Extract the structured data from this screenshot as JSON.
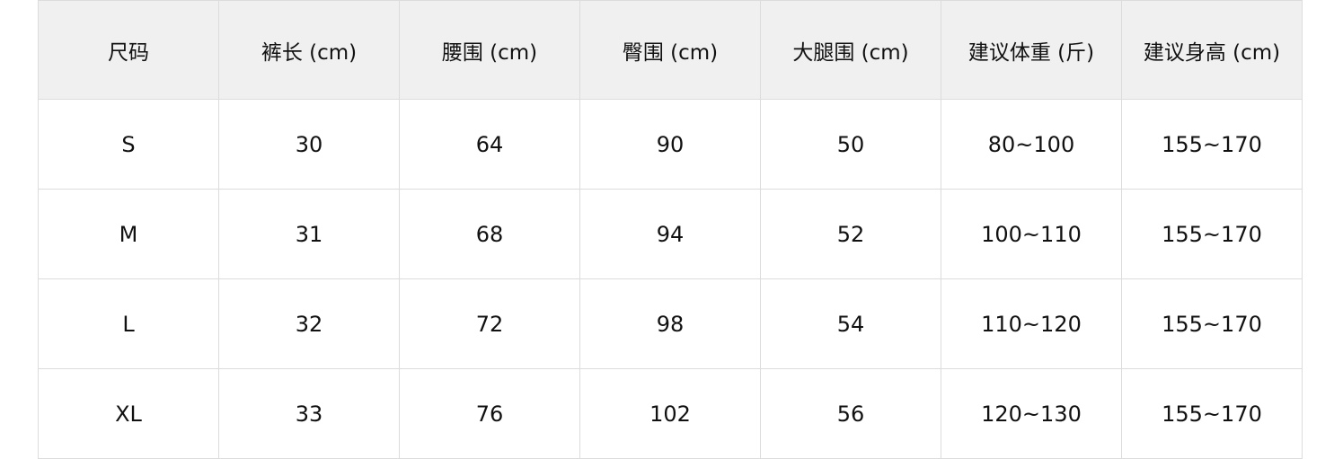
{
  "size_chart": {
    "headers": [
      "尺码",
      "裤长 (cm)",
      "腰围 (cm)",
      "臀围 (cm)",
      "大腿围 (cm)",
      "建议体重 (斤)",
      "建议身高 (cm)"
    ],
    "rows": [
      [
        "S",
        "30",
        "64",
        "90",
        "50",
        "80~100",
        "155~170"
      ],
      [
        "M",
        "31",
        "68",
        "94",
        "52",
        "100~110",
        "155~170"
      ],
      [
        "L",
        "32",
        "72",
        "98",
        "54",
        "110~120",
        "155~170"
      ],
      [
        "XL",
        "33",
        "76",
        "102",
        "56",
        "120~130",
        "155~170"
      ]
    ],
    "colors": {
      "header_bg": "#f0f0f0",
      "border": "#dcdcdc",
      "text": "#111111"
    }
  }
}
